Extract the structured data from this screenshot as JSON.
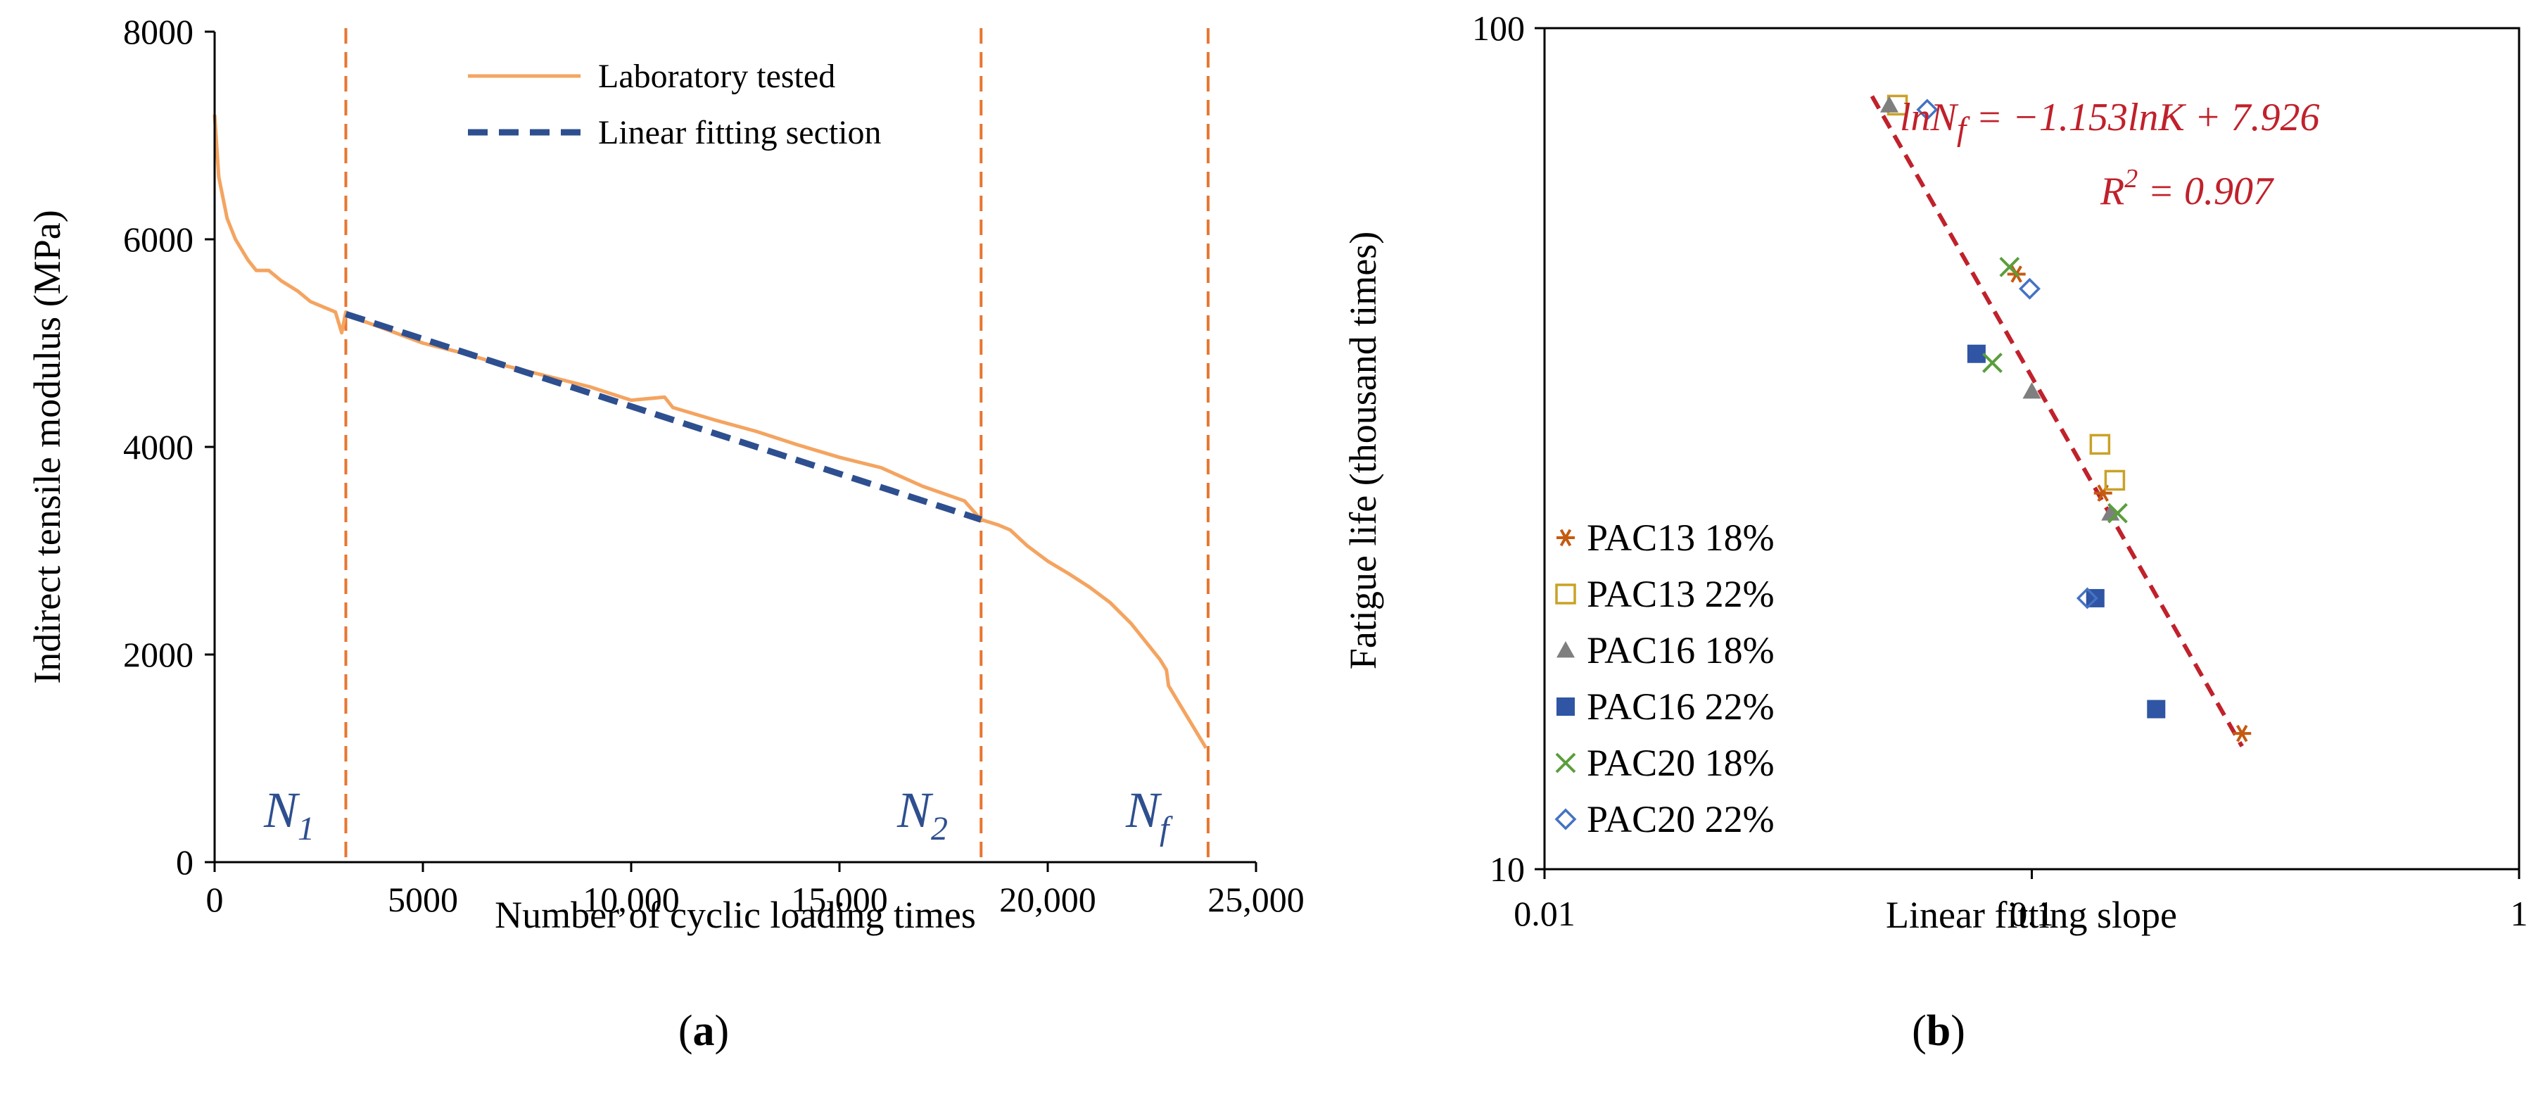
{
  "chart_data": [
    {
      "panel": "(a)",
      "type": "line",
      "xlabel": "Number of cyclic loading times",
      "ylabel": "Indirect tensile modulus (MPa)",
      "xlim": [
        0,
        25000
      ],
      "ylim": [
        0,
        8000
      ],
      "xticks": [
        0,
        5000,
        10000,
        15000,
        20000,
        25000
      ],
      "xtick_labels": [
        "0",
        "5000",
        "10,000",
        "15,000",
        "20,000",
        "25,000"
      ],
      "yticks": [
        0,
        2000,
        4000,
        6000,
        8000
      ],
      "ytick_labels": [
        "0",
        "2000",
        "4000",
        "6000",
        "8000"
      ],
      "legend": [
        "Laboratory tested",
        "Linear fitting section"
      ],
      "legend_position": "top-center",
      "series": [
        {
          "name": "Laboratory tested",
          "color": "#f4a460",
          "x": [
            0,
            100,
            300,
            500,
            800,
            1000,
            1300,
            1600,
            2000,
            2300,
            2600,
            2900,
            3050,
            3150,
            3300,
            4000,
            5000,
            6000,
            7000,
            8000,
            9000,
            10000,
            10800,
            11000,
            12000,
            13000,
            14000,
            15000,
            16000,
            17000,
            18000,
            18400,
            18800,
            19100,
            19500,
            20000,
            20500,
            21000,
            21500,
            22000,
            22400,
            22700,
            22850,
            22900,
            23200,
            23500,
            23800
          ],
          "values": [
            7200,
            6600,
            6200,
            6000,
            5800,
            5700,
            5700,
            5600,
            5500,
            5400,
            5350,
            5300,
            5100,
            5300,
            5250,
            5150,
            5000,
            4900,
            4780,
            4680,
            4580,
            4450,
            4480,
            4380,
            4260,
            4150,
            4020,
            3900,
            3800,
            3620,
            3480,
            3300,
            3250,
            3200,
            3050,
            2900,
            2780,
            2650,
            2500,
            2300,
            2100,
            1950,
            1850,
            1700,
            1500,
            1300,
            1100
          ]
        },
        {
          "name": "Linear fitting section",
          "color": "#2e4f8f",
          "x": [
            3150,
            18400
          ],
          "values": [
            5280,
            3300
          ]
        }
      ],
      "vlines": [
        {
          "x": 3150,
          "label_main": "N",
          "label_sub": "1"
        },
        {
          "x": 18400,
          "label_main": "N",
          "label_sub": "2"
        },
        {
          "x": 23850,
          "label_main": "N",
          "label_sub": "f"
        }
      ],
      "vline_color": "#e8762f"
    },
    {
      "panel": "(b)",
      "type": "scatter",
      "xscale": "log",
      "yscale": "log",
      "xlabel": "Linear fitting slope",
      "ylabel": "Fatigue life (thousand times)",
      "xlim": [
        0.01,
        1
      ],
      "ylim": [
        10,
        100
      ],
      "xticks": [
        0.01,
        0.1,
        1
      ],
      "xtick_labels": [
        "0.01",
        "0.1",
        "1"
      ],
      "yticks": [
        10,
        100
      ],
      "ytick_labels": [
        "10",
        "100"
      ],
      "legend_position": "bottom-left",
      "series": [
        {
          "name": "PAC13 18%",
          "marker": "asterisk",
          "color": "#c55a11",
          "x": [
            0.093,
            0.14,
            0.27
          ],
          "values": [
            51,
            28,
            14.5
          ]
        },
        {
          "name": "PAC13 22%",
          "marker": "square-open",
          "color": "#c9a227",
          "x": [
            0.053,
            0.138,
            0.148
          ],
          "values": [
            81,
            32,
            29
          ]
        },
        {
          "name": "PAC16 18%",
          "marker": "triangle",
          "color": "#7f7f7f",
          "x": [
            0.051,
            0.1,
            0.145
          ],
          "values": [
            81,
            37,
            26.5
          ]
        },
        {
          "name": "PAC16 22%",
          "marker": "square",
          "color": "#2f55a4",
          "x": [
            0.077,
            0.135,
            0.18
          ],
          "values": [
            41,
            21,
            15.5
          ]
        },
        {
          "name": "PAC20 18%",
          "marker": "x",
          "color": "#5a9e3c",
          "x": [
            0.09,
            0.083,
            0.15
          ],
          "values": [
            52,
            40,
            26.5
          ]
        },
        {
          "name": "PAC20 22%",
          "marker": "diamond-open",
          "color": "#4472c4",
          "x": [
            0.061,
            0.099,
            0.13
          ],
          "values": [
            80,
            49,
            21
          ]
        }
      ],
      "fit_line": {
        "color": "#c0212b",
        "x": [
          0.047,
          0.27
        ],
        "values": [
          83,
          14
        ]
      },
      "annotation": {
        "equation": "lnN_f = −1.153lnK + 7.926",
        "eq_lhs": "lnN",
        "eq_sub": "f",
        "eq_rhs": " = −1.153lnK + 7.926",
        "r2": "R^2 = 0.907",
        "r2_base": "R",
        "r2_exp": "2",
        "r2_rhs": " = 0.907"
      }
    }
  ],
  "captions": {
    "a_open": "(",
    "a_letter": "a",
    "a_close": ")",
    "b_open": "(",
    "b_letter": "b",
    "b_close": ")"
  }
}
